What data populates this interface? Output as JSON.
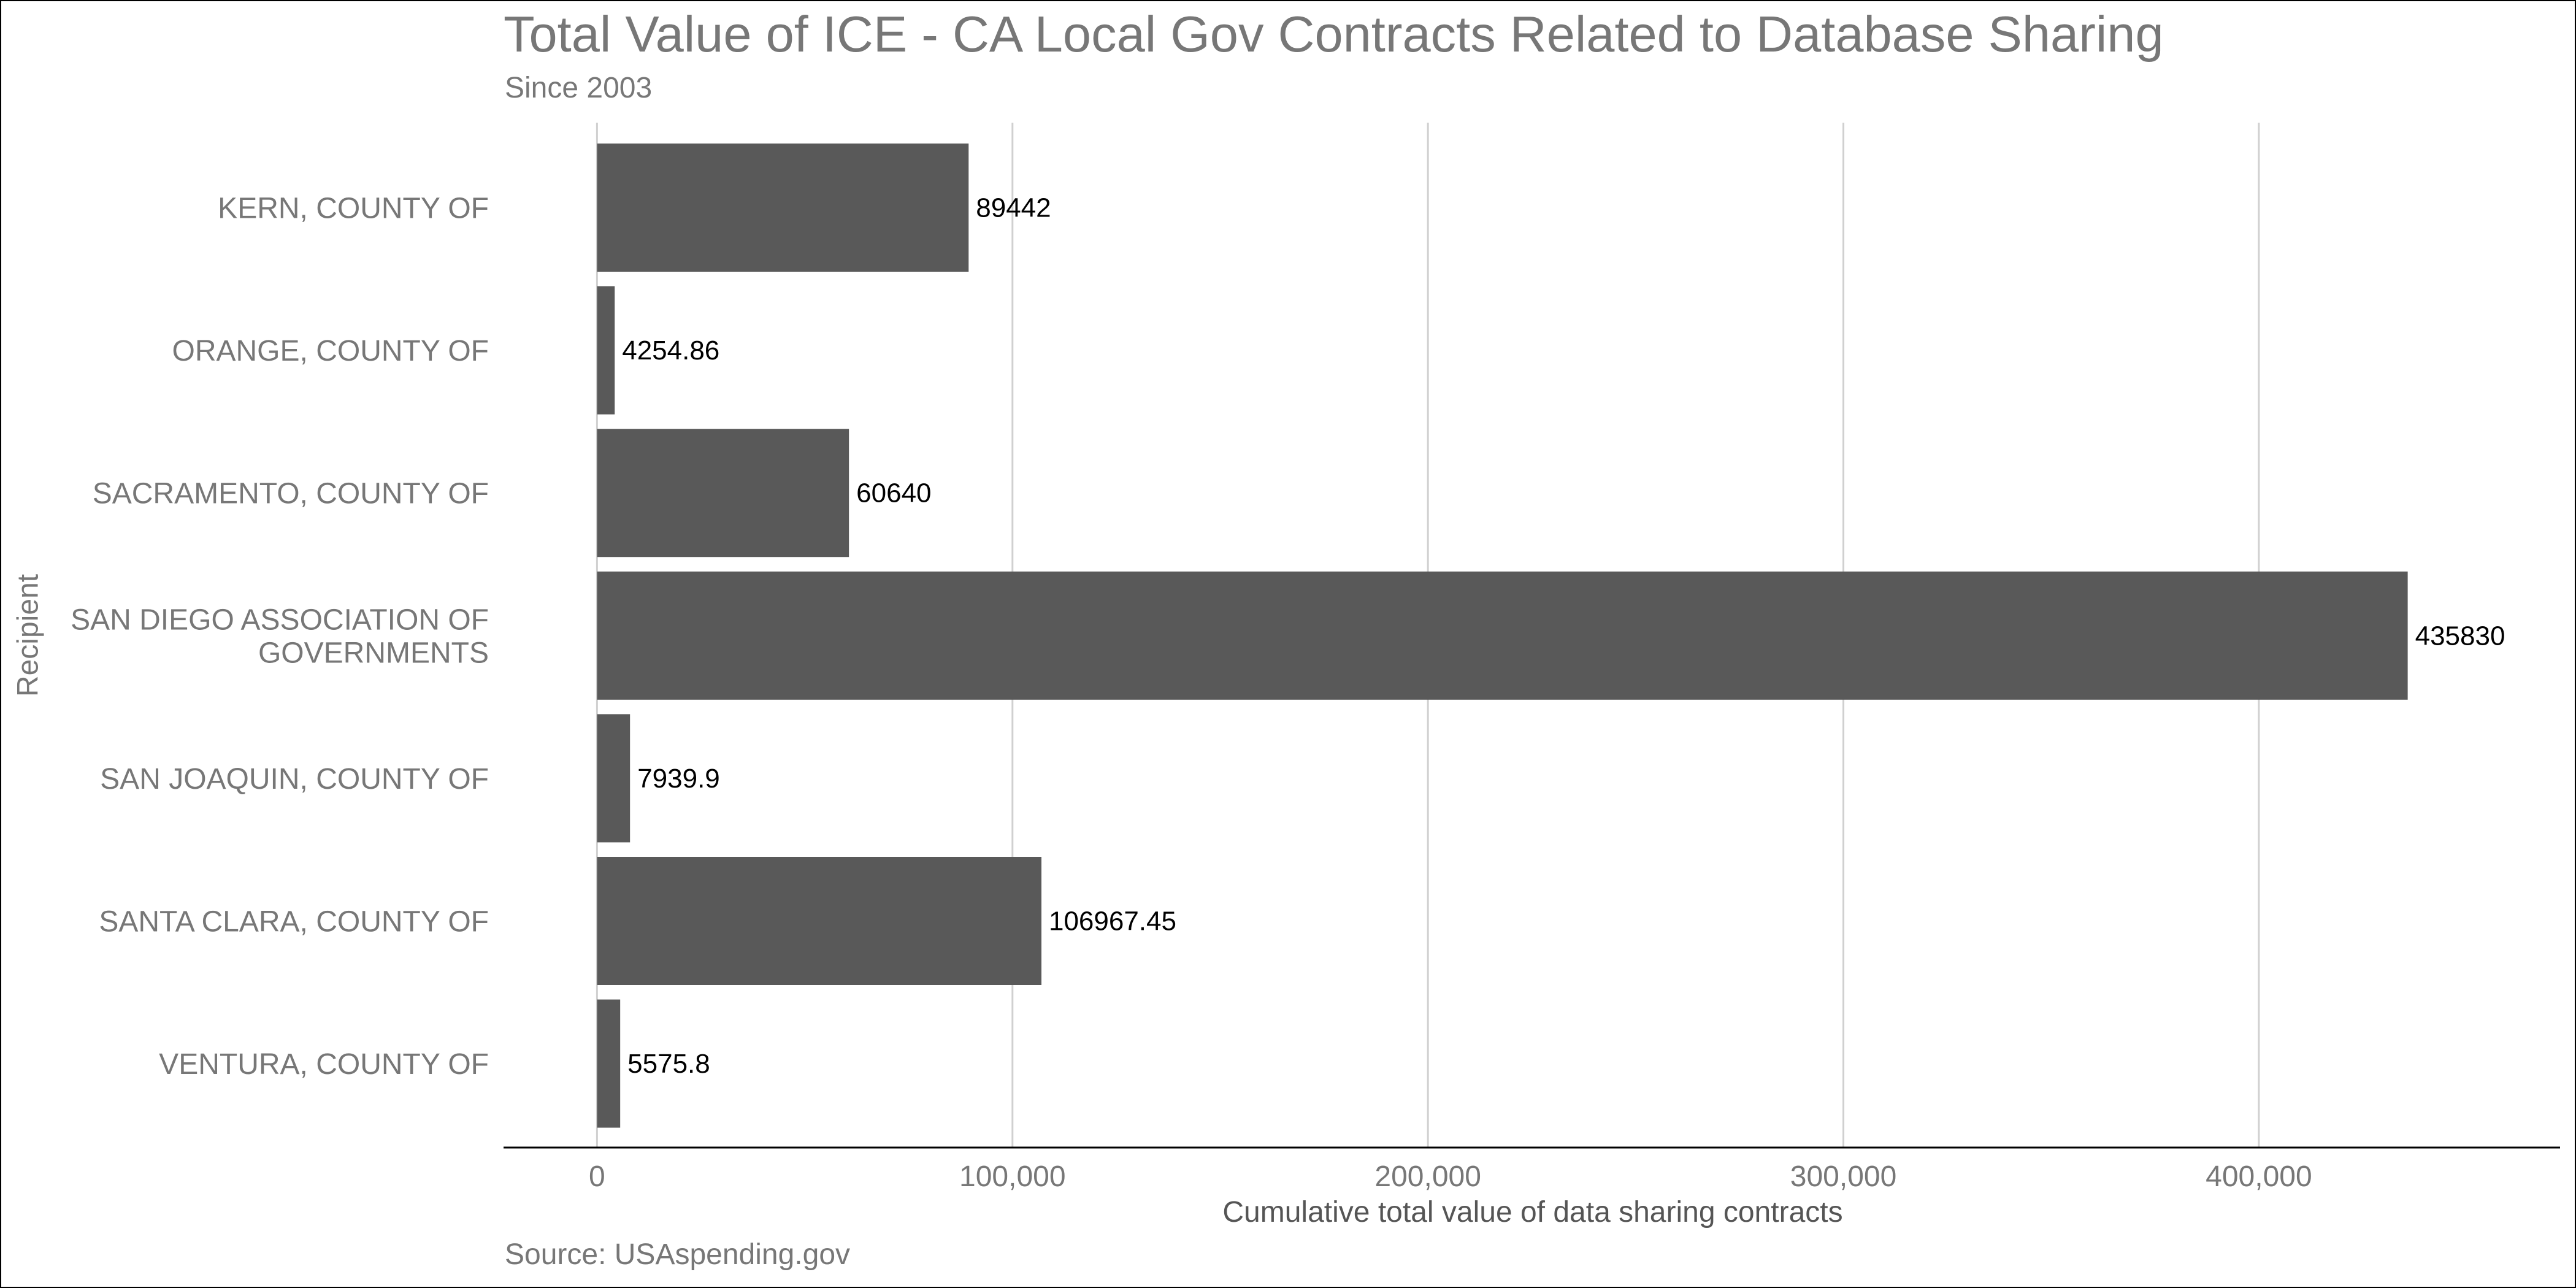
{
  "chart_data": {
    "type": "bar",
    "orientation": "horizontal",
    "title": "Total Value of ICE - CA Local Gov Contracts Related to Database Sharing",
    "subtitle": "Since 2003",
    "caption": "Source: USAspending.gov",
    "xlabel": "Cumulative total value of data sharing contracts",
    "ylabel": "Recipient",
    "categories": [
      "KERN, COUNTY OF",
      "ORANGE, COUNTY OF",
      "SACRAMENTO, COUNTY OF",
      "SAN DIEGO ASSOCIATION OF GOVERNMENTS",
      "SAN JOAQUIN, COUNTY OF",
      "SANTA CLARA, COUNTY OF",
      "VENTURA, COUNTY OF"
    ],
    "category_display_lines": [
      [
        "KERN, COUNTY OF"
      ],
      [
        "ORANGE, COUNTY OF"
      ],
      [
        "SACRAMENTO, COUNTY OF"
      ],
      [
        "SAN DIEGO ASSOCIATION OF",
        "GOVERNMENTS"
      ],
      [
        "SAN JOAQUIN, COUNTY OF"
      ],
      [
        "SANTA CLARA, COUNTY OF"
      ],
      [
        "VENTURA, COUNTY OF"
      ]
    ],
    "values": [
      89442,
      4254.86,
      60640,
      435830,
      7939.9,
      106967.45,
      5575.8
    ],
    "value_labels": [
      "89442",
      "4254.86",
      "60640",
      "435830",
      "7939.9",
      "106967.45",
      "5575.8"
    ],
    "x_ticks": [
      0,
      100000,
      200000,
      300000,
      400000
    ],
    "x_tick_labels": [
      "0",
      "100,000",
      "200,000",
      "300,000",
      "400,000"
    ],
    "xlim": [
      -22500,
      472500
    ],
    "grid": "vertical major",
    "legend": "none",
    "bar_color": "#595959",
    "grid_color": "#d0d0d0",
    "axis_text_color": "#777777",
    "label_color": "#000000"
  }
}
